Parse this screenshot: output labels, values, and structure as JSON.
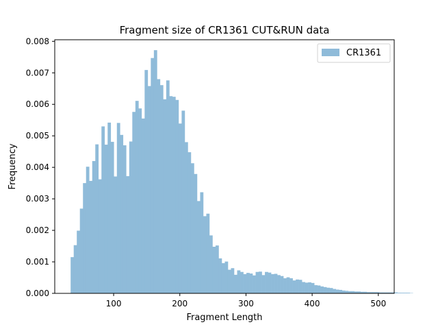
{
  "chart_data": {
    "type": "bar",
    "title": "Fragment size of CR1361 CUT&RUN data",
    "xlabel": "Fragment Length",
    "ylabel": "Frequency",
    "xlim": [
      11,
      524
    ],
    "ylim": [
      0,
      0.00805
    ],
    "xticks": [
      100,
      200,
      300,
      400,
      500
    ],
    "xtick_labels": [
      "100",
      "200",
      "300",
      "400",
      "500"
    ],
    "yticks": [
      0.0,
      0.001,
      0.002,
      0.003,
      0.004,
      0.005,
      0.006,
      0.007,
      0.008
    ],
    "ytick_labels": [
      "0.000",
      "0.001",
      "0.002",
      "0.003",
      "0.004",
      "0.005",
      "0.006",
      "0.007",
      "0.008"
    ],
    "grid": false,
    "legend_position": "top-right",
    "bin_start": 35,
    "bin_width": 4.66,
    "series": [
      {
        "name": "CR1361",
        "color": "#8fbbd9",
        "values": [
          0.00115,
          0.00153,
          0.00199,
          0.00269,
          0.0035,
          0.00402,
          0.00357,
          0.0042,
          0.00473,
          0.00362,
          0.0053,
          0.00472,
          0.00542,
          0.00481,
          0.00371,
          0.00541,
          0.00503,
          0.0047,
          0.00372,
          0.00482,
          0.00576,
          0.00611,
          0.00587,
          0.00555,
          0.00709,
          0.00658,
          0.00747,
          0.00772,
          0.0068,
          0.00661,
          0.00616,
          0.00676,
          0.00626,
          0.00624,
          0.00614,
          0.00539,
          0.0058,
          0.0048,
          0.00448,
          0.00413,
          0.00379,
          0.00293,
          0.00321,
          0.00245,
          0.00253,
          0.00184,
          0.00148,
          0.00152,
          0.00111,
          0.00096,
          0.00101,
          0.00075,
          0.0008,
          0.00059,
          0.00073,
          0.00068,
          0.00061,
          0.00065,
          0.00063,
          0.00057,
          0.00068,
          0.00069,
          0.00058,
          0.00068,
          0.00066,
          0.00061,
          0.00062,
          0.00058,
          0.00055,
          0.00048,
          0.00051,
          0.00048,
          0.00041,
          0.00044,
          0.00043,
          0.00036,
          0.00034,
          0.00035,
          0.00033,
          0.00026,
          0.00025,
          0.00022,
          0.0002,
          0.00018,
          0.00017,
          0.00014,
          0.00012,
          0.00011,
          9e-05,
          8e-05,
          7e-05,
          7e-05,
          6e-05,
          6e-05,
          5e-05,
          5e-05,
          4e-05,
          4e-05,
          4e-05,
          4e-05,
          3e-05,
          3e-05,
          3e-05,
          3e-05,
          3e-05,
          3e-05,
          2e-05,
          2e-05,
          2e-05,
          2e-05,
          1e-05
        ]
      }
    ]
  }
}
